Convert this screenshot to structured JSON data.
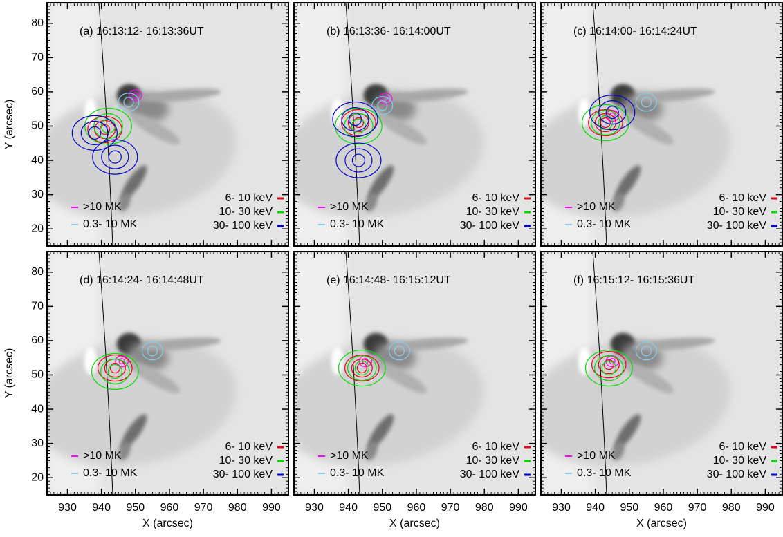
{
  "chart_data": [
    {
      "type": "contour",
      "title": "(a) 16:13:12- 16:13:36UT",
      "xlim": [
        924,
        995
      ],
      "ylim": [
        15,
        86
      ],
      "xticks": [
        930,
        940,
        950,
        960,
        970,
        980,
        990
      ],
      "yticks": [
        20,
        30,
        40,
        50,
        60,
        70,
        80
      ],
      "y_label": "Y (arcsec)",
      "series": [
        {
          "name": ">10 MK",
          "color": "#ff00ff",
          "x": [
            950
          ],
          "y": [
            59
          ]
        },
        {
          "name": "0.3- 10 MK",
          "color": "#87ceeb",
          "x": [
            948
          ],
          "y": [
            57
          ]
        },
        {
          "name": "6- 10 keV",
          "color": "#e8001c",
          "x": [
            941
          ],
          "y": [
            49
          ]
        },
        {
          "name": "10- 30 keV",
          "color": "#00dd00",
          "x": [
            942
          ],
          "y": [
            50
          ]
        },
        {
          "name": "30- 100 keV",
          "color": "#0000cc",
          "x": [
            938,
            944
          ],
          "y": [
            48,
            41
          ]
        }
      ]
    },
    {
      "type": "contour",
      "title": "(b) 16:13:36- 16:14:00UT",
      "xlim": [
        924,
        995
      ],
      "ylim": [
        15,
        86
      ],
      "xticks": [
        930,
        940,
        950,
        960,
        970,
        980,
        990
      ],
      "yticks": [
        20,
        30,
        40,
        50,
        60,
        70,
        80
      ],
      "series": [
        {
          "name": ">10 MK",
          "color": "#ff00ff",
          "x": [
            951
          ],
          "y": [
            58
          ]
        },
        {
          "name": "0.3- 10 MK",
          "color": "#87ceeb",
          "x": [
            950
          ],
          "y": [
            56
          ]
        },
        {
          "name": "6- 10 keV",
          "color": "#e8001c",
          "x": [
            943
          ],
          "y": [
            51
          ]
        },
        {
          "name": "10- 30 keV",
          "color": "#00dd00",
          "x": [
            943
          ],
          "y": [
            50
          ]
        },
        {
          "name": "30- 100 keV",
          "color": "#0000cc",
          "x": [
            942,
            943
          ],
          "y": [
            52,
            40
          ]
        }
      ]
    },
    {
      "type": "contour",
      "title": "(c) 16:14:00- 16:14:24UT",
      "xlim": [
        924,
        995
      ],
      "ylim": [
        15,
        86
      ],
      "xticks": [
        930,
        940,
        950,
        960,
        970,
        980,
        990
      ],
      "yticks": [
        20,
        30,
        40,
        50,
        60,
        70,
        80
      ],
      "series": [
        {
          "name": ">10 MK",
          "color": "#ff00ff",
          "x": [
            945
          ],
          "y": [
            53
          ]
        },
        {
          "name": "0.3- 10 MK",
          "color": "#87ceeb",
          "x": [
            955
          ],
          "y": [
            57
          ]
        },
        {
          "name": "6- 10 keV",
          "color": "#e8001c",
          "x": [
            943
          ],
          "y": [
            51
          ]
        },
        {
          "name": "10- 30 keV",
          "color": "#00dd00",
          "x": [
            943
          ],
          "y": [
            51
          ]
        },
        {
          "name": "30- 100 keV",
          "color": "#0000cc",
          "x": [
            945
          ],
          "y": [
            54
          ]
        }
      ]
    },
    {
      "type": "contour",
      "title": "(d) 16:14:24- 16:14:48UT",
      "xlim": [
        924,
        995
      ],
      "ylim": [
        15,
        86
      ],
      "xticks": [
        930,
        940,
        950,
        960,
        970,
        980,
        990
      ],
      "yticks": [
        20,
        30,
        40,
        50,
        60,
        70,
        80
      ],
      "x_label": "X (arcsec)",
      "y_label": "Y (arcsec)",
      "series": [
        {
          "name": ">10 MK",
          "color": "#ff00ff",
          "x": [
            946
          ],
          "y": [
            54
          ]
        },
        {
          "name": "0.3- 10 MK",
          "color": "#87ceeb",
          "x": [
            955
          ],
          "y": [
            57
          ]
        },
        {
          "name": "6- 10 keV",
          "color": "#e8001c",
          "x": [
            944
          ],
          "y": [
            52
          ]
        },
        {
          "name": "10- 30 keV",
          "color": "#00dd00",
          "x": [
            944
          ],
          "y": [
            51
          ]
        },
        {
          "name": "30- 100 keV",
          "color": "#0000cc",
          "x": [],
          "y": []
        }
      ]
    },
    {
      "type": "contour",
      "title": "(e) 16:14:48- 16:15:12UT",
      "xlim": [
        924,
        995
      ],
      "ylim": [
        15,
        86
      ],
      "xticks": [
        930,
        940,
        950,
        960,
        970,
        980,
        990
      ],
      "yticks": [
        20,
        30,
        40,
        50,
        60,
        70,
        80
      ],
      "x_label": "X (arcsec)",
      "series": [
        {
          "name": ">10 MK",
          "color": "#ff00ff",
          "x": [
            945
          ],
          "y": [
            54
          ]
        },
        {
          "name": "0.3- 10 MK",
          "color": "#87ceeb",
          "x": [
            955
          ],
          "y": [
            57
          ]
        },
        {
          "name": "6- 10 keV",
          "color": "#e8001c",
          "x": [
            944
          ],
          "y": [
            52
          ]
        },
        {
          "name": "10- 30 keV",
          "color": "#00dd00",
          "x": [
            944
          ],
          "y": [
            52
          ]
        },
        {
          "name": "30- 100 keV",
          "color": "#0000cc",
          "x": [],
          "y": []
        }
      ]
    },
    {
      "type": "contour",
      "title": "(f) 16:15:12- 16:15:36UT",
      "xlim": [
        924,
        995
      ],
      "ylim": [
        15,
        86
      ],
      "xticks": [
        930,
        940,
        950,
        960,
        970,
        980,
        990
      ],
      "yticks": [
        20,
        30,
        40,
        50,
        60,
        70,
        80
      ],
      "x_label": "X (arcsec)",
      "series": [
        {
          "name": ">10 MK",
          "color": "#ff00ff",
          "x": [
            945
          ],
          "y": [
            54
          ]
        },
        {
          "name": "0.3- 10 MK",
          "color": "#87ceeb",
          "x": [
            955
          ],
          "y": [
            57
          ]
        },
        {
          "name": "6- 10 keV",
          "color": "#e8001c",
          "x": [
            944
          ],
          "y": [
            53
          ]
        },
        {
          "name": "10- 30 keV",
          "color": "#00dd00",
          "x": [
            944
          ],
          "y": [
            52
          ]
        },
        {
          "name": "30- 100 keV",
          "color": "#0000cc",
          "x": [],
          "y": []
        }
      ]
    }
  ]
}
